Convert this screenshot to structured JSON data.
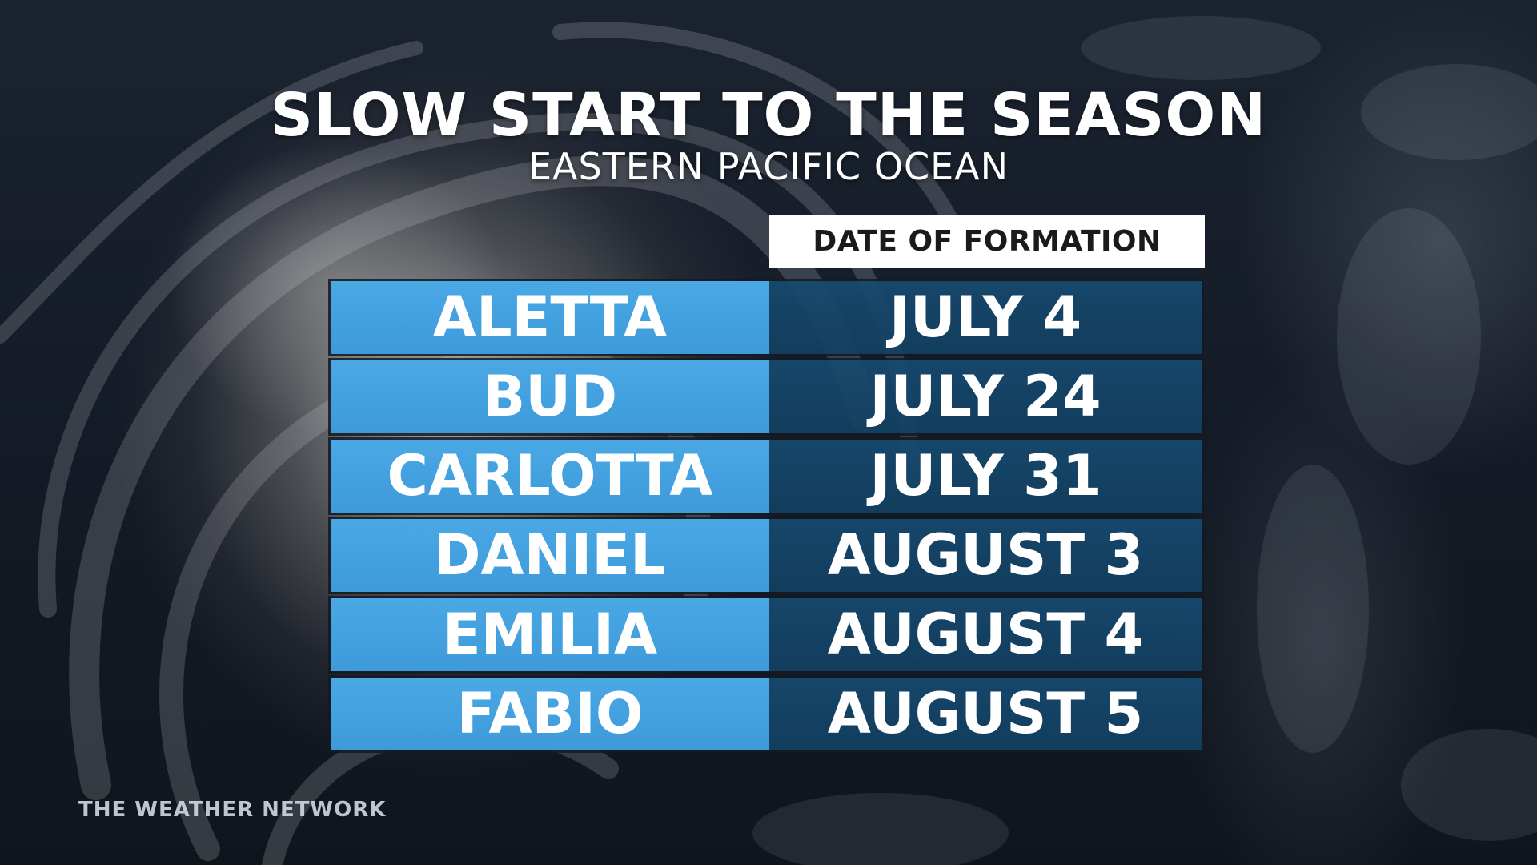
{
  "graphic": {
    "title": "SLOW START TO THE SEASON",
    "subtitle": "EASTERN PACIFIC OCEAN",
    "column_header": "DATE OF FORMATION",
    "storms": [
      {
        "name": "ALETTA",
        "date": "JULY 4"
      },
      {
        "name": "BUD",
        "date": "JULY 24"
      },
      {
        "name": "CARLOTTA",
        "date": "JULY 31"
      },
      {
        "name": "DANIEL",
        "date": "AUGUST 3"
      },
      {
        "name": "EMILIA",
        "date": "AUGUST 4"
      },
      {
        "name": "FABIO",
        "date": "AUGUST 5"
      }
    ],
    "brand": "THE WEATHER NETWORK"
  },
  "colors": {
    "name_cell": "#4aa8e5",
    "date_cell": "#164a70",
    "header_bg": "#ffffff",
    "header_text": "#1a1a1a"
  }
}
